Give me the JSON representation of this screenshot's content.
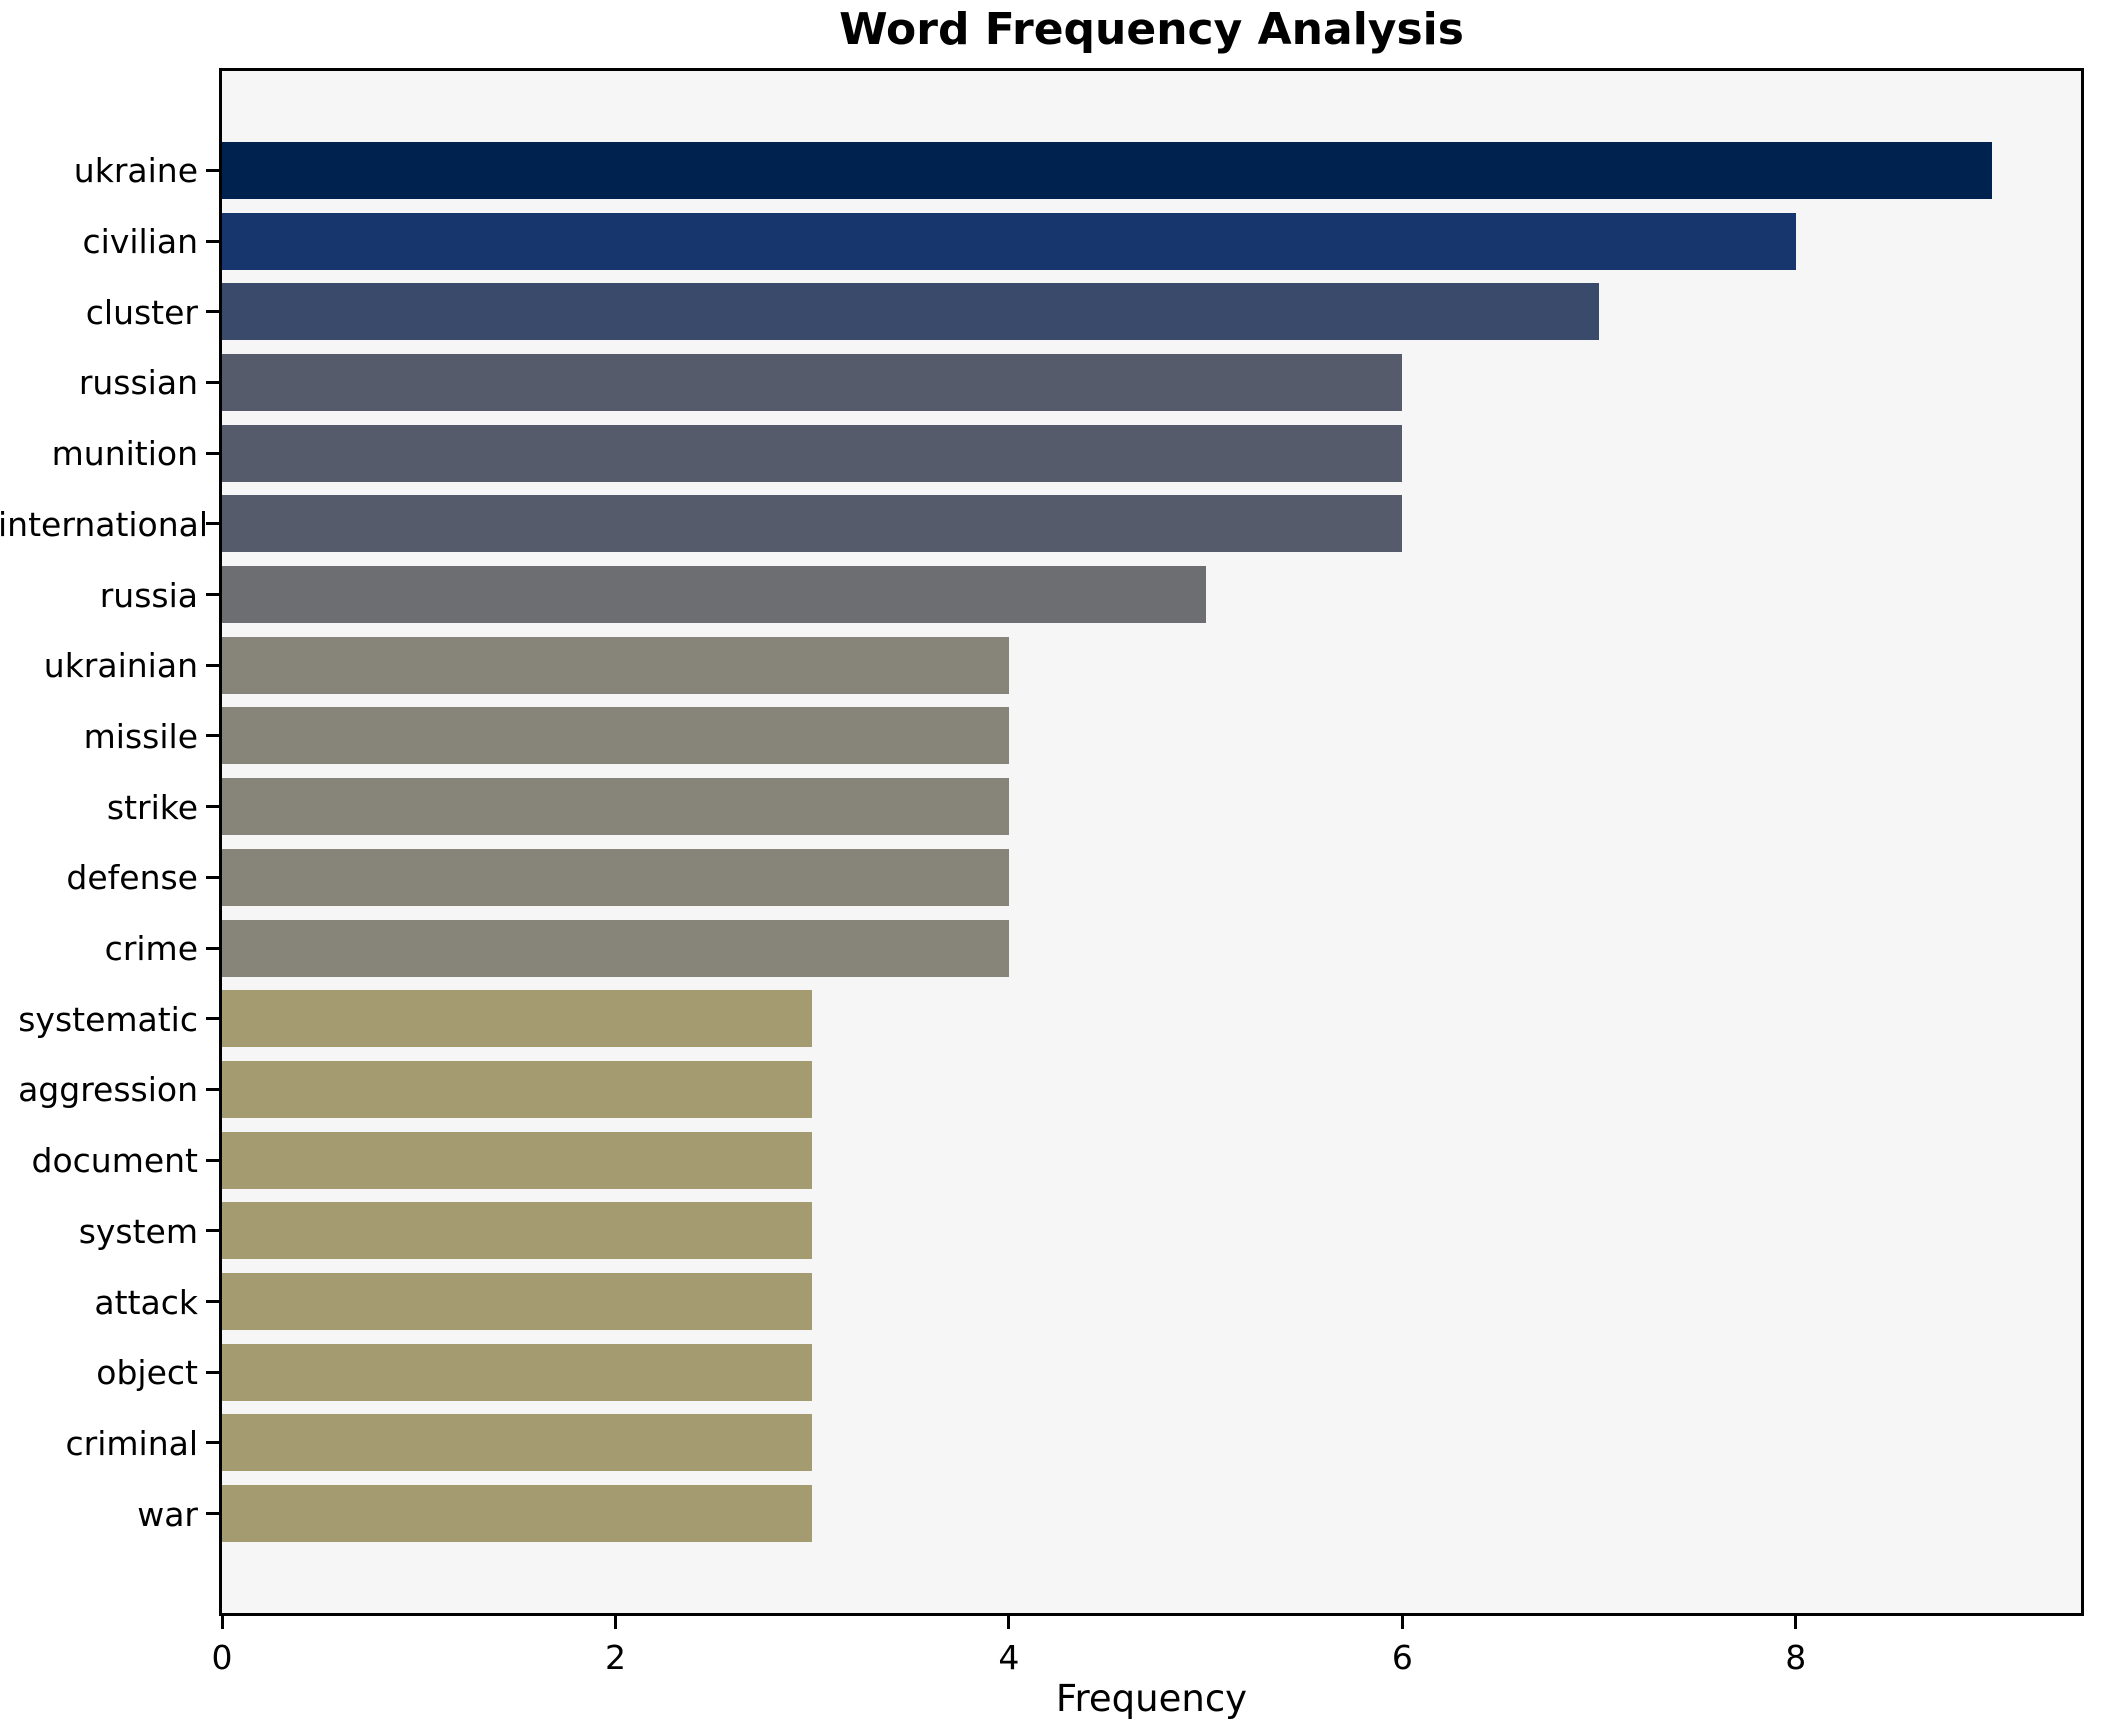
{
  "title": "Word Frequency Analysis",
  "chart_data": {
    "type": "bar",
    "orientation": "horizontal",
    "title": "Word Frequency Analysis",
    "xlabel": "Frequency",
    "ylabel": "",
    "categories": [
      "ukraine",
      "civilian",
      "cluster",
      "russian",
      "munition",
      "international",
      "russia",
      "ukrainian",
      "missile",
      "strike",
      "defense",
      "crime",
      "systematic",
      "aggression",
      "document",
      "system",
      "attack",
      "object",
      "criminal",
      "war"
    ],
    "values": [
      9,
      8,
      7,
      6,
      6,
      6,
      5,
      4,
      4,
      4,
      4,
      4,
      3,
      3,
      3,
      3,
      3,
      3,
      3,
      3
    ],
    "bar_colors": [
      "#00224e",
      "#17366e",
      "#3a4a6b",
      "#555b6b",
      "#555b6b",
      "#555b6b",
      "#6d6e72",
      "#87857a",
      "#87857a",
      "#87857a",
      "#87857a",
      "#87857a",
      "#a49b71",
      "#a49b71",
      "#a49b71",
      "#a49b71",
      "#a49b71",
      "#a49b71",
      "#a49b71",
      "#a49b71"
    ],
    "xlim": [
      0,
      9.45
    ],
    "xticks": [
      0,
      2,
      4,
      6,
      8
    ],
    "grid": false,
    "legend": null,
    "plot_background": "#f6f6f7",
    "spine_color": "#000000",
    "colormap": "cividis-reversed-by-value"
  }
}
